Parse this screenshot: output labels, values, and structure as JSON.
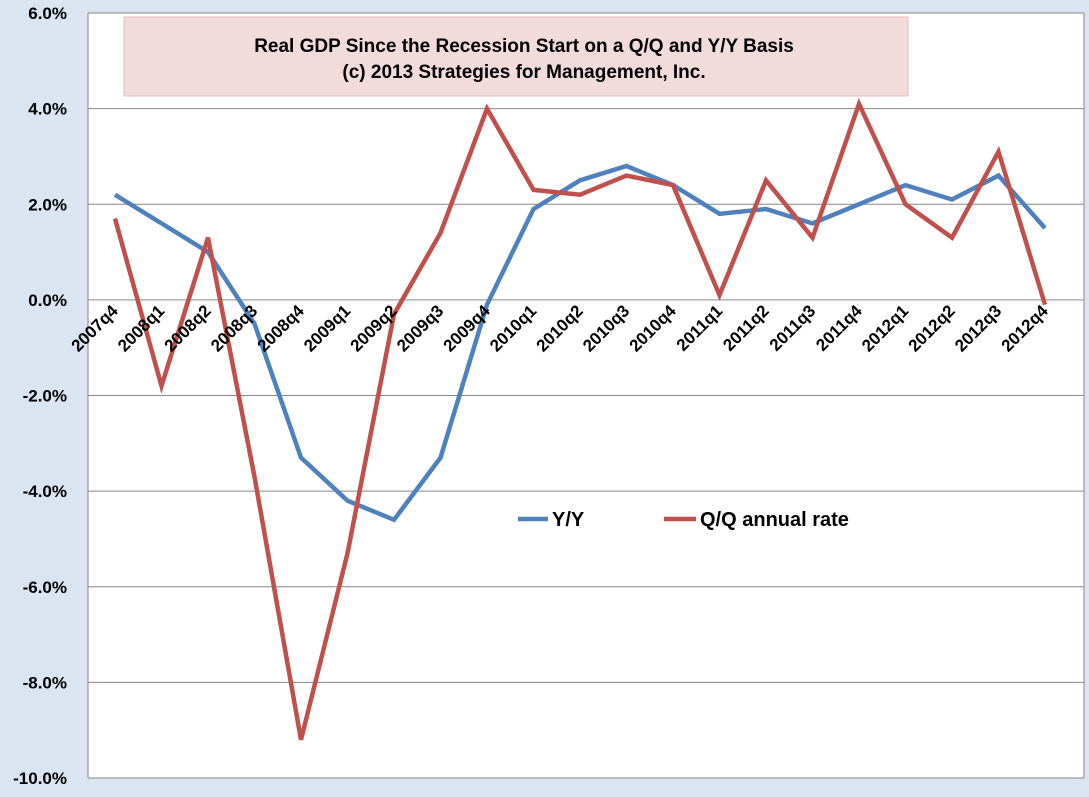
{
  "chart_data": {
    "type": "line",
    "title": "Real GDP Since the Recession Start on a Q/Q and Y/Y Basis",
    "subtitle": "(c) 2013 Strategies for Management, Inc.",
    "categories": [
      "2007q4",
      "2008q1",
      "2008q2",
      "2008q3",
      "2008q4",
      "2009q1",
      "2009q2",
      "2009q3",
      "2009q4",
      "2010q1",
      "2010q2",
      "2010q3",
      "2010q4",
      "2011q1",
      "2011q2",
      "2011q3",
      "2011q4",
      "2012q1",
      "2012q2",
      "2012q3",
      "2012q4"
    ],
    "series": [
      {
        "name": "Y/Y",
        "color": "#4f81bd",
        "values": [
          2.2,
          1.6,
          1.0,
          -0.5,
          -3.3,
          -4.2,
          -4.6,
          -3.3,
          -0.1,
          1.9,
          2.5,
          2.8,
          2.4,
          1.8,
          1.9,
          1.6,
          2.0,
          2.4,
          2.1,
          2.6,
          1.5
        ]
      },
      {
        "name": "Q/Q annual rate",
        "color": "#c0504d",
        "values": [
          1.7,
          -1.8,
          1.3,
          -3.7,
          -9.2,
          -5.3,
          -0.3,
          1.4,
          4.0,
          2.3,
          2.2,
          2.6,
          2.4,
          0.1,
          2.5,
          1.3,
          4.1,
          2.0,
          1.3,
          3.1,
          -0.1
        ]
      }
    ],
    "yticks": [
      "6.0%",
      "4.0%",
      "2.0%",
      "0.0%",
      "-2.0%",
      "-4.0%",
      "-6.0%",
      "-8.0%",
      "-10.0%"
    ],
    "ylim": [
      -10,
      6
    ],
    "ytick_step": 2,
    "grid": true,
    "legend_position": "middle-right",
    "colors": {
      "background": "#dbe5f1",
      "plot_background": "#ffffff",
      "title_box": "#f2dcdb",
      "grid": "#868686"
    }
  }
}
